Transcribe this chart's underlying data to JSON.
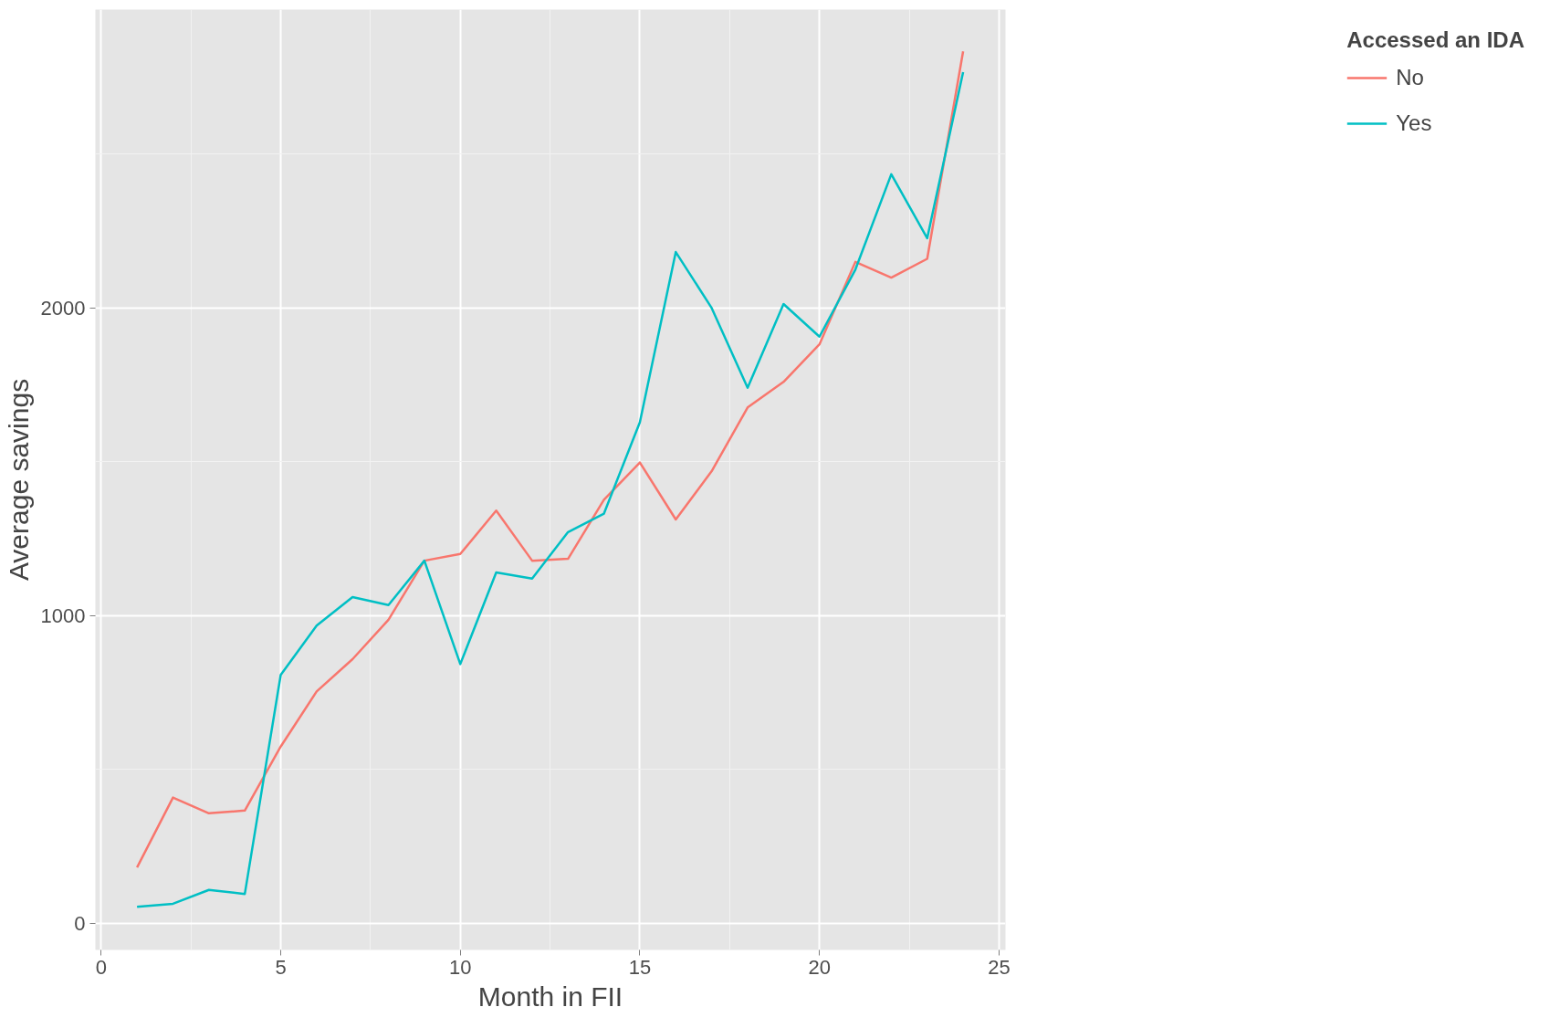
{
  "chart_data": {
    "type": "line",
    "xlabel": "Month in FII",
    "ylabel": "Average savings",
    "legend_title": "Accessed an IDA",
    "x": [
      1,
      2,
      3,
      4,
      5,
      6,
      7,
      8,
      9,
      10,
      11,
      12,
      13,
      14,
      15,
      16,
      17,
      18,
      19,
      20,
      21,
      22,
      23,
      24
    ],
    "series": [
      {
        "name": "No",
        "color": "#f8766d",
        "values": [
          182,
          409,
          358,
          367,
          575,
          754,
          859,
          987,
          1179,
          1201,
          1342,
          1179,
          1185,
          1377,
          1498,
          1313,
          1470,
          1677,
          1760,
          1882,
          2150,
          2099,
          2160,
          2834
        ]
      },
      {
        "name": "Yes",
        "color": "#00bfc4",
        "values": [
          54,
          64,
          109,
          96,
          808,
          968,
          1061,
          1035,
          1179,
          843,
          1141,
          1121,
          1272,
          1332,
          1629,
          2182,
          2000,
          1741,
          2013,
          1907,
          2125,
          2435,
          2227,
          2767
        ]
      }
    ],
    "xlim": [
      -0.16,
      25.18
    ],
    "ylim": [
      -86,
      2970
    ],
    "xticks": [
      0,
      5,
      10,
      15,
      20,
      25
    ],
    "yticks": [
      0,
      1000,
      2000
    ],
    "grid": true,
    "legend": "right",
    "marker": "none",
    "line_style": "solid"
  }
}
